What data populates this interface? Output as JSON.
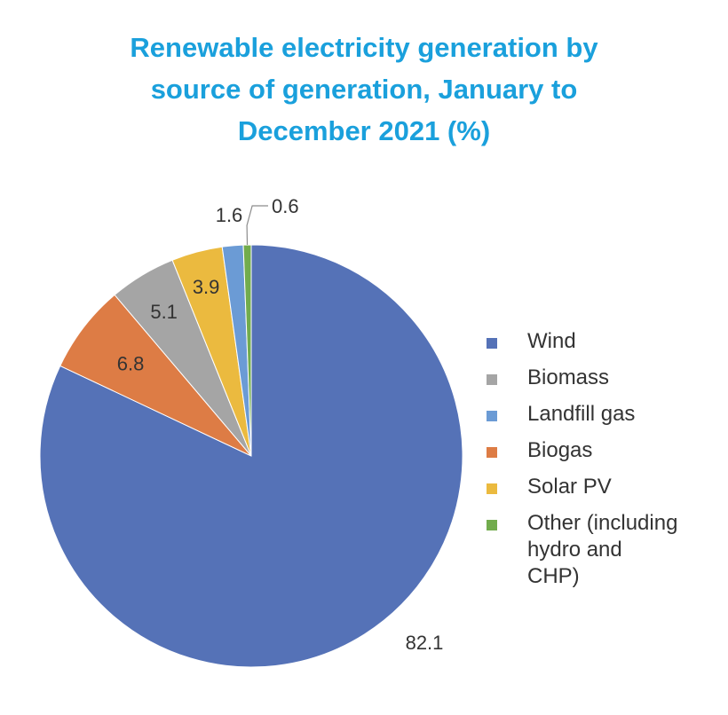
{
  "chart_data": {
    "type": "pie",
    "title_lines": [
      "Renewable electricity generation by",
      "source of generation, January to",
      "December 2021 (%)"
    ],
    "start_angle_deg": 0,
    "direction": "clockwise",
    "slices": [
      {
        "name": "Wind",
        "value": 82.1,
        "label": "82.1",
        "color": "#5572b7"
      },
      {
        "name": "Biogas",
        "value": 6.8,
        "label": "6.8",
        "color": "#dd7c45"
      },
      {
        "name": "Biomass",
        "value": 5.1,
        "label": "5.1",
        "color": "#a5a5a5"
      },
      {
        "name": "Solar PV",
        "value": 3.9,
        "label": "3.9",
        "color": "#ebba3f"
      },
      {
        "name": "Landfill gas",
        "value": 1.6,
        "label": "1.6",
        "color": "#6b9bd5"
      },
      {
        "name": "Other (including hydro and CHP)",
        "value": 0.6,
        "label": "0.6",
        "color": "#72ac4d"
      }
    ],
    "legend": {
      "placement": "right",
      "items": [
        {
          "label_lines": [
            "Wind"
          ],
          "color": "#5572b7"
        },
        {
          "label_lines": [
            "Biomass"
          ],
          "color": "#a5a5a5"
        },
        {
          "label_lines": [
            "Landfill gas"
          ],
          "color": "#6b9bd5"
        },
        {
          "label_lines": [
            "Biogas"
          ],
          "color": "#dd7c45"
        },
        {
          "label_lines": [
            "Solar PV"
          ],
          "color": "#ebba3f"
        },
        {
          "label_lines": [
            "Other (including",
            "hydro and",
            "CHP)"
          ],
          "color": "#72ac4d"
        }
      ]
    }
  }
}
